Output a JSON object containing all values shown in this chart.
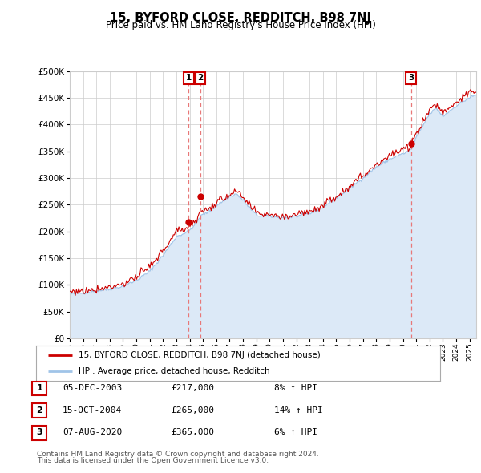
{
  "title": "15, BYFORD CLOSE, REDDITCH, B98 7NJ",
  "subtitle": "Price paid vs. HM Land Registry's House Price Index (HPI)",
  "legend_line1": "15, BYFORD CLOSE, REDDITCH, B98 7NJ (detached house)",
  "legend_line2": "HPI: Average price, detached house, Redditch",
  "footer1": "Contains HM Land Registry data © Crown copyright and database right 2024.",
  "footer2": "This data is licensed under the Open Government Licence v3.0.",
  "transactions": [
    {
      "num": 1,
      "date": "05-DEC-2003",
      "price": 217000,
      "year": 2003.92,
      "hpi_pct": "8%"
    },
    {
      "num": 2,
      "date": "15-OCT-2004",
      "price": 265000,
      "year": 2004.79,
      "hpi_pct": "14%"
    },
    {
      "num": 3,
      "date": "07-AUG-2020",
      "price": 365000,
      "year": 2020.6,
      "hpi_pct": "6%"
    }
  ],
  "xmin": 1995.0,
  "xmax": 2025.5,
  "ymin": 0,
  "ymax": 500000,
  "yticks": [
    0,
    50000,
    100000,
    150000,
    200000,
    250000,
    300000,
    350000,
    400000,
    450000,
    500000
  ],
  "background_color": "#ffffff",
  "grid_color": "#cccccc",
  "hpi_fill_color": "#dce9f7",
  "hpi_line_color": "#a0c4e8",
  "price_line_color": "#cc0000",
  "vline_color": "#e87878",
  "annotation_box_color": "#cc0000"
}
